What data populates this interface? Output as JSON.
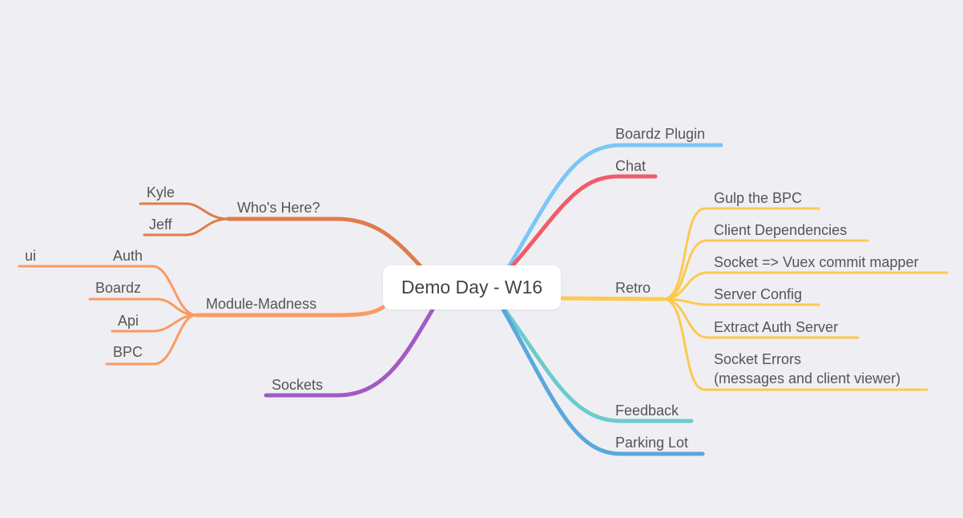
{
  "root": {
    "label": "Demo Day - W16"
  },
  "colors": {
    "who": "#e07b4a",
    "module": "#fb9a62",
    "sockets": "#a25ac4",
    "boardz_plugin": "#7cc7f5",
    "chat": "#f25b6a",
    "retro": "#fdc94f",
    "feedback": "#6ccbcb",
    "parking": "#5aa8dc"
  },
  "branches": {
    "who": {
      "label": "Who's Here?",
      "children": [
        "Kyle",
        "Jeff"
      ]
    },
    "module": {
      "label": "Module-Madness",
      "children": [
        "Auth",
        "Boardz",
        "Api",
        "BPC"
      ],
      "auth_child": "ui"
    },
    "sockets": {
      "label": "Sockets"
    },
    "boardz_plugin": {
      "label": "Boardz Plugin"
    },
    "chat": {
      "label": "Chat"
    },
    "retro": {
      "label": "Retro",
      "children": [
        "Gulp the BPC",
        "Client Dependencies",
        "Socket => Vuex commit mapper",
        "Server Config",
        "Extract Auth Server"
      ],
      "socket_errors": {
        "line1": "Socket Errors",
        "line2": "(messages and client viewer)"
      }
    },
    "feedback": {
      "label": "Feedback"
    },
    "parking": {
      "label": "Parking Lot"
    }
  }
}
